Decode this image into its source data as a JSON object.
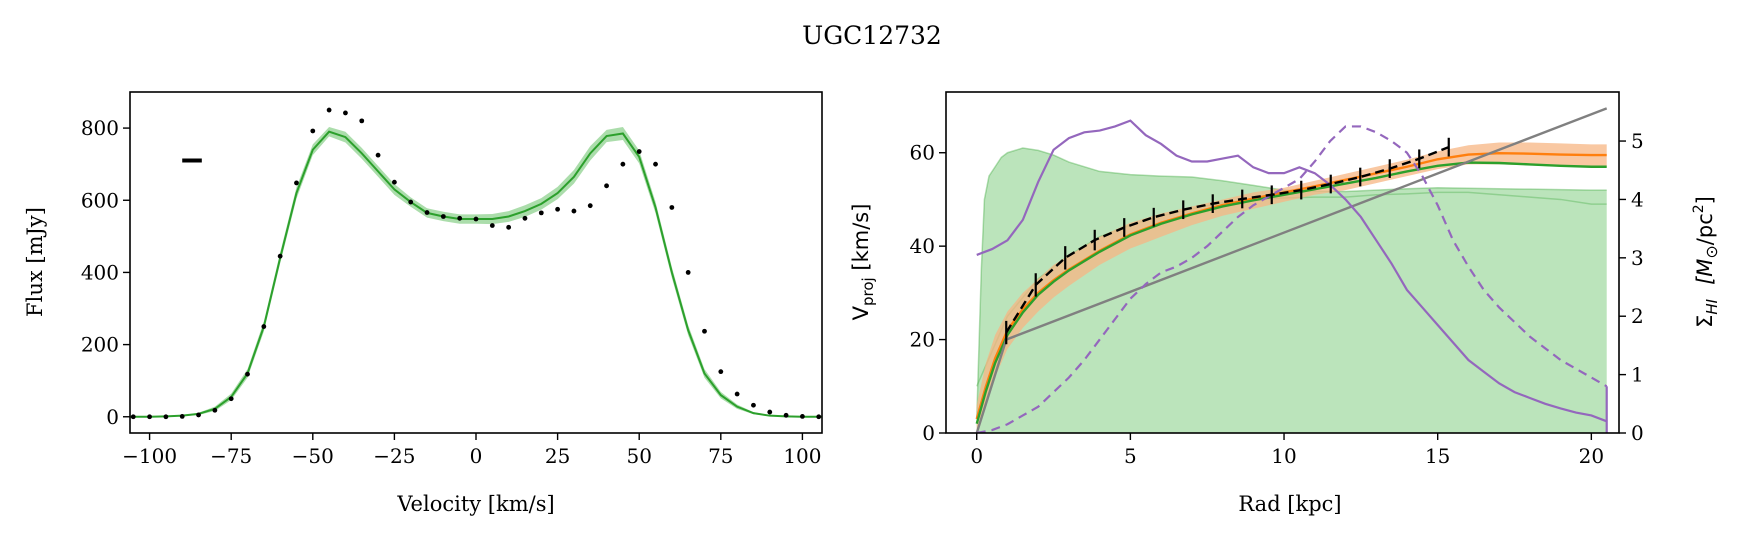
{
  "figure": {
    "title": "UGC12732"
  },
  "colors": {
    "green": "#2ca02c",
    "green_band": "#8fd18f",
    "green_fill": "#9ed99e",
    "orange": "#ff7f0e",
    "orange_band": "#f7b683",
    "purple": "#9467bd",
    "gray": "#808080",
    "black": "#000000"
  },
  "chart_data": [
    {
      "type": "line",
      "name": "spectrum",
      "xlabel": "Velocity [km/s]",
      "ylabel": "Flux [mJy]",
      "xlim": [
        -106,
        106
      ],
      "ylim": [
        -45,
        900
      ],
      "xticks": [
        -100,
        -75,
        -50,
        -25,
        0,
        25,
        50,
        75,
        100
      ],
      "xtick_labels": [
        "−100",
        "−75",
        "−50",
        "−25",
        "0",
        "25",
        "50",
        "75",
        "100"
      ],
      "yticks": [
        0,
        200,
        400,
        600,
        800
      ],
      "ytick_labels": [
        "0",
        "200",
        "400",
        "600",
        "800"
      ],
      "resolution_bar": {
        "x": [
          -90,
          -84
        ],
        "y": 710
      },
      "model": {
        "x": [
          -106,
          -100,
          -95,
          -90,
          -85,
          -80,
          -75,
          -70,
          -65,
          -60,
          -55,
          -50,
          -45,
          -40,
          -35,
          -30,
          -25,
          -20,
          -15,
          -10,
          -5,
          0,
          5,
          10,
          15,
          20,
          25,
          30,
          35,
          40,
          45,
          50,
          55,
          60,
          65,
          70,
          75,
          80,
          85,
          90,
          95,
          100,
          106
        ],
        "y": [
          0,
          0,
          1,
          3,
          8,
          22,
          55,
          120,
          250,
          440,
          620,
          740,
          790,
          775,
          730,
          680,
          630,
          595,
          565,
          555,
          548,
          548,
          548,
          555,
          570,
          590,
          620,
          665,
          730,
          778,
          785,
          720,
          580,
          400,
          240,
          120,
          60,
          28,
          10,
          3,
          1,
          0,
          0
        ],
        "upper": [
          0,
          0,
          1,
          4,
          11,
          28,
          64,
          132,
          264,
          455,
          636,
          755,
          803,
          790,
          745,
          695,
          645,
          608,
          578,
          568,
          561,
          561,
          562,
          570,
          586,
          606,
          637,
          684,
          750,
          795,
          803,
          738,
          596,
          415,
          254,
          132,
          69,
          34,
          13,
          4,
          1,
          0,
          0
        ],
        "lower": [
          0,
          0,
          0,
          2,
          5,
          16,
          46,
          108,
          236,
          425,
          604,
          725,
          777,
          760,
          715,
          665,
          615,
          582,
          552,
          542,
          535,
          535,
          534,
          540,
          554,
          574,
          603,
          646,
          710,
          761,
          767,
          702,
          564,
          385,
          226,
          108,
          51,
          22,
          7,
          2,
          0,
          0,
          0
        ]
      },
      "points": {
        "x": [
          -105,
          -100,
          -95,
          -90,
          -85,
          -80,
          -75,
          -70,
          -65,
          -60,
          -55,
          -50,
          -45,
          -40,
          -35,
          -30,
          -25,
          -20,
          -15,
          -10,
          -5,
          0,
          5,
          10,
          15,
          20,
          25,
          30,
          35,
          40,
          45,
          50,
          55,
          60,
          65,
          70,
          75,
          80,
          85,
          90,
          95,
          100,
          105
        ],
        "y": [
          0,
          0,
          0,
          1,
          5,
          18,
          50,
          118,
          250,
          445,
          648,
          792,
          850,
          842,
          820,
          725,
          650,
          595,
          566,
          555,
          550,
          548,
          530,
          525,
          550,
          565,
          575,
          570,
          585,
          640,
          700,
          735,
          700,
          580,
          400,
          237,
          125,
          63,
          32,
          13,
          4,
          1,
          0
        ]
      }
    },
    {
      "type": "line",
      "name": "rotation_curve",
      "xlabel": "Rad [kpc]",
      "ylabel": "V",
      "ylabel_sub": "proj",
      "ylabel_unit": " [km/s]",
      "y2label_sigma": "Σ",
      "y2label_sub": "HI",
      "y2label_unit_prefix": "[M",
      "y2label_unit_suffix": "/pc",
      "y2label_unit_sup": "2",
      "y2label_unit_close": "]",
      "xlim": [
        -1,
        20.9
      ],
      "ylim": [
        0,
        73
      ],
      "y2lim": [
        0,
        5.84
      ],
      "xticks": [
        0,
        5,
        10,
        15,
        20
      ],
      "xtick_labels": [
        "0",
        "5",
        "10",
        "15",
        "20"
      ],
      "yticks": [
        0,
        20,
        40,
        60
      ],
      "ytick_labels": [
        "0",
        "20",
        "40",
        "60"
      ],
      "y2ticks": [
        0,
        1,
        2,
        3,
        4,
        5
      ],
      "y2tick_labels": [
        "0",
        "1",
        "2",
        "3",
        "4",
        "5"
      ],
      "gray_line": {
        "x": [
          0,
          0.96,
          20.5
        ],
        "y": [
          0,
          20,
          69.5
        ]
      },
      "green_fill": {
        "x": [
          0,
          0.15,
          0.25,
          0.4,
          0.6,
          0.8,
          1,
          1.5,
          2,
          2.5,
          3,
          4,
          5,
          6,
          7,
          8,
          9,
          10,
          11,
          12,
          13,
          14,
          15,
          16,
          17,
          18,
          19,
          20,
          20.5
        ],
        "upper": [
          3,
          35,
          50,
          55,
          57,
          59,
          60,
          61,
          60.5,
          59.5,
          58,
          56,
          55.3,
          55,
          54.8,
          54,
          53,
          52,
          51.8,
          51.7,
          52,
          52.3,
          52.5,
          52.4,
          52.3,
          52.2,
          52.1,
          52,
          52
        ],
        "lower": [
          0,
          0,
          0,
          0,
          0,
          0,
          0,
          0,
          0,
          0,
          0,
          0,
          0,
          0,
          0,
          0,
          0,
          0,
          0,
          0,
          0,
          0,
          0,
          0,
          0,
          0,
          0,
          0,
          0
        ],
        "lower_trace": {
          "x": [
            0,
            1,
            2,
            3,
            4,
            5,
            6,
            7,
            8,
            9,
            10,
            11,
            12,
            13,
            14,
            15,
            16,
            17,
            18,
            19,
            20,
            20.5
          ],
          "y": [
            10,
            25,
            33,
            38,
            42,
            44.5,
            46.5,
            48,
            49.3,
            50,
            50.3,
            50.5,
            50.5,
            51,
            51.2,
            51.5,
            51.5,
            51,
            50.5,
            50,
            49,
            49
          ]
        }
      },
      "orange_band": {
        "x": [
          0,
          0.3,
          0.6,
          1,
          1.5,
          2,
          2.5,
          3,
          4,
          5,
          6,
          7,
          8,
          9,
          10,
          11,
          12,
          13,
          14,
          15,
          16,
          17,
          18,
          19,
          20,
          20.5
        ],
        "upper": [
          6,
          15,
          21,
          26,
          30,
          33,
          36,
          38,
          42,
          45,
          47,
          48.5,
          50,
          51.5,
          52.5,
          54,
          55.5,
          57,
          58.5,
          60.3,
          61.6,
          62.2,
          62.2,
          62,
          61.8,
          61.8
        ],
        "lower": [
          0,
          6,
          12,
          18,
          22.5,
          26,
          29,
          31.5,
          36,
          39.5,
          42,
          44.5,
          46.5,
          48,
          49.5,
          51,
          52,
          53.5,
          55,
          56.5,
          57.5,
          57.5,
          57.3,
          57,
          57,
          57
        ]
      },
      "orange_line": {
        "x": [
          0,
          0.3,
          0.6,
          1,
          1.5,
          2,
          2.5,
          3,
          4,
          5,
          6,
          7,
          8,
          9,
          10,
          11,
          12,
          13,
          14,
          15,
          16,
          17,
          18,
          19,
          20,
          20.5
        ],
        "y": [
          3,
          10,
          16,
          22,
          26.5,
          30,
          32.7,
          35,
          39,
          42.5,
          45,
          47,
          48.8,
          50.2,
          51.5,
          52.8,
          54.2,
          55.6,
          57,
          58.6,
          59.6,
          59.9,
          59.8,
          59.6,
          59.5,
          59.5
        ]
      },
      "green_line": {
        "x": [
          0,
          0.3,
          0.6,
          1,
          1.5,
          2,
          2.5,
          3,
          4,
          5,
          6,
          7,
          8,
          9,
          10,
          11,
          12,
          13,
          14,
          15,
          16,
          17,
          18,
          19,
          20,
          20.5
        ],
        "y": [
          2,
          9,
          15,
          21,
          25.8,
          29.6,
          32.4,
          34.8,
          38.8,
          42.3,
          44.8,
          46.8,
          48.5,
          49.8,
          51,
          52.2,
          53.4,
          54.6,
          56,
          57.2,
          57.9,
          57.8,
          57.5,
          57.2,
          57,
          57
        ]
      },
      "data_points": {
        "x": [
          0.96,
          1.92,
          2.88,
          3.84,
          4.8,
          5.76,
          6.72,
          7.68,
          8.64,
          9.6,
          10.56,
          11.52,
          12.48,
          13.44,
          14.4,
          15.36
        ],
        "y": [
          21.5,
          31.7,
          37.5,
          41.3,
          44,
          46.2,
          47.8,
          49.1,
          50.1,
          51,
          52,
          53.3,
          54.8,
          56.6,
          58.7,
          61.2
        ],
        "err": [
          2.5,
          2.5,
          2.5,
          2.2,
          2,
          2,
          2,
          2,
          2,
          2,
          2,
          2,
          2,
          2,
          2,
          2
        ]
      },
      "sigma_solid": {
        "x": [
          0,
          0.5,
          1,
          1.5,
          2,
          2.5,
          3,
          3.5,
          4,
          4.5,
          5,
          5.5,
          6,
          6.5,
          7,
          7.5,
          8,
          8.5,
          9,
          9.5,
          10,
          10.5,
          11,
          11.5,
          12,
          12.5,
          13,
          13.5,
          14,
          14.5,
          15,
          15.5,
          16,
          16.5,
          17,
          17.5,
          18,
          18.5,
          19,
          19.5,
          20,
          20.5
        ],
        "y": [
          3.05,
          3.15,
          3.3,
          3.65,
          4.3,
          4.85,
          5.05,
          5.15,
          5.18,
          5.25,
          5.35,
          5.1,
          4.95,
          4.75,
          4.65,
          4.65,
          4.7,
          4.75,
          4.55,
          4.45,
          4.45,
          4.55,
          4.45,
          4.25,
          4.0,
          3.7,
          3.3,
          2.9,
          2.45,
          2.15,
          1.85,
          1.55,
          1.25,
          1.05,
          0.85,
          0.7,
          0.6,
          0.5,
          0.42,
          0.35,
          0.3,
          0.2
        ]
      },
      "sigma_dashed": {
        "x": [
          0,
          0.5,
          1,
          1.5,
          2,
          2.5,
          3,
          3.5,
          4,
          4.5,
          5,
          5.5,
          6,
          6.5,
          7,
          7.5,
          8,
          8.5,
          9,
          9.5,
          10,
          10.5,
          11,
          11.5,
          12,
          12.5,
          13,
          13.5,
          14,
          14.5,
          15,
          15.5,
          16,
          16.5,
          17,
          17.5,
          18,
          18.5,
          19,
          19.5,
          20,
          20.5
        ],
        "y": [
          0,
          0.05,
          0.15,
          0.3,
          0.45,
          0.7,
          0.95,
          1.25,
          1.6,
          1.95,
          2.3,
          2.55,
          2.75,
          2.85,
          3.0,
          3.2,
          3.45,
          3.7,
          3.9,
          4.05,
          4.2,
          4.35,
          4.65,
          5.0,
          5.25,
          5.25,
          5.15,
          5.0,
          4.8,
          4.4,
          3.9,
          3.3,
          2.85,
          2.45,
          2.15,
          1.9,
          1.65,
          1.45,
          1.25,
          1.1,
          0.95,
          0.8
        ]
      }
    }
  ]
}
